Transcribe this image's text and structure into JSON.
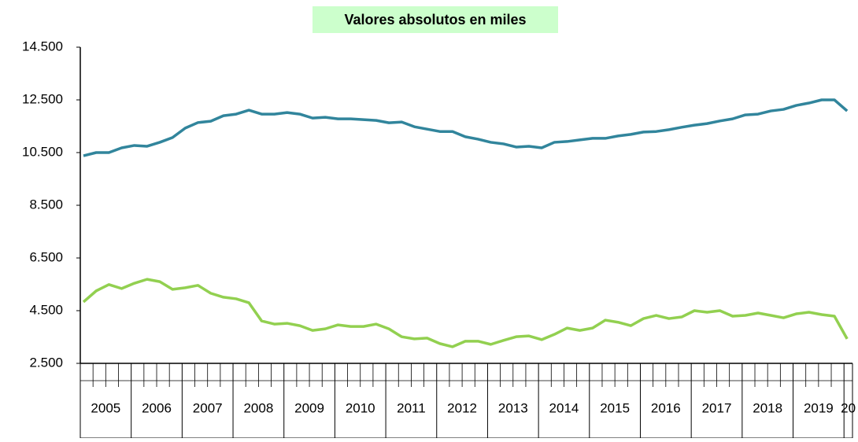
{
  "chart_data": {
    "type": "line",
    "title": "Valores absolutos en miles",
    "categories": [
      null,
      null,
      null,
      null,
      null,
      null,
      null,
      null,
      null,
      null,
      null,
      null,
      null,
      null,
      null,
      null,
      null,
      null,
      null,
      null,
      null,
      null,
      null,
      null,
      null,
      null,
      null,
      null,
      null,
      null,
      null,
      null,
      null,
      null,
      null,
      null,
      null,
      null,
      null,
      null,
      null,
      null,
      null,
      null,
      null,
      null,
      null,
      null,
      null,
      null,
      null,
      null,
      null,
      null,
      null,
      null,
      null,
      null,
      null,
      null,
      null
    ],
    "year_groups": [
      "2005",
      "2006",
      "2007",
      "2008",
      "2009",
      "2010",
      "2011",
      "2012",
      "2013",
      "2014",
      "2015",
      "2016",
      "2017",
      "2018",
      "2019",
      "20"
    ],
    "series": [
      {
        "color": "#31859c",
        "values": [
          10380,
          10500,
          10500,
          10680,
          10770,
          10740,
          10890,
          11070,
          11430,
          11640,
          11690,
          11900,
          11960,
          12110,
          11960,
          11960,
          12020,
          11960,
          11810,
          11840,
          11780,
          11780,
          11750,
          11720,
          11630,
          11660,
          11480,
          11390,
          11300,
          11300,
          11100,
          11010,
          10890,
          10830,
          10710,
          10740,
          10680,
          10890,
          10920,
          10980,
          11040,
          11040,
          11130,
          11190,
          11280,
          11300,
          11370,
          11460,
          11540,
          11600,
          11700,
          11780,
          11930,
          11960,
          12080,
          12140,
          12290,
          12380,
          12500,
          12500,
          12080
        ]
      },
      {
        "color": "#92d050",
        "values": [
          4830,
          5250,
          5490,
          5340,
          5540,
          5690,
          5600,
          5310,
          5370,
          5460,
          5160,
          5010,
          4950,
          4800,
          4110,
          3990,
          4020,
          3930,
          3750,
          3810,
          3960,
          3900,
          3900,
          3990,
          3810,
          3510,
          3430,
          3460,
          3250,
          3130,
          3340,
          3340,
          3220,
          3370,
          3510,
          3540,
          3400,
          3600,
          3840,
          3750,
          3840,
          4140,
          4060,
          3930,
          4200,
          4320,
          4200,
          4260,
          4500,
          4440,
          4500,
          4290,
          4320,
          4410,
          4320,
          4230,
          4380,
          4440,
          4350,
          4290,
          3430
        ]
      }
    ],
    "ylim": [
      2500,
      14500
    ],
    "yticks": [
      {
        "value": 2500,
        "label": "2.500"
      },
      {
        "value": 4500,
        "label": "4.500"
      },
      {
        "value": 6500,
        "label": "6.500"
      },
      {
        "value": 8500,
        "label": "8.500"
      },
      {
        "value": 10500,
        "label": "10.500"
      },
      {
        "value": 12500,
        "label": "12.500"
      },
      {
        "value": 14500,
        "label": "14.500"
      }
    ]
  }
}
